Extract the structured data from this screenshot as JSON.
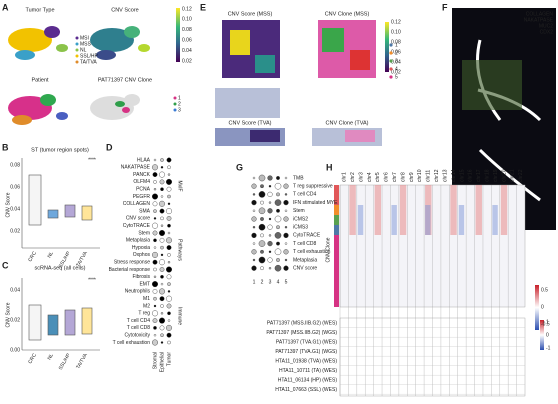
{
  "A": {
    "label": "A",
    "titles": [
      "Tumor Type",
      "CNV Score",
      "Patient",
      "PAT71397 CNV Clone"
    ],
    "legend": [
      "MSI",
      "MSS",
      "NL",
      "SSL/HP",
      "TA/TVA"
    ],
    "colorbar": [
      "0.12",
      "0.10",
      "0.08",
      "0.06",
      "0.04",
      "0.02"
    ],
    "clones": [
      "1",
      "2",
      "3"
    ]
  },
  "B": {
    "label": "B",
    "title": "ST (tumor region spots)",
    "ylabel": "CNV Score",
    "yticks": [
      "0.08",
      "0.06",
      "0.04",
      "0.02"
    ],
    "categories": [
      "CRC",
      "NL",
      "SSL/HP",
      "TA/TVA"
    ],
    "sig": "****"
  },
  "C": {
    "label": "C",
    "title": "scRNA-seq (all cells)",
    "ylabel": "CNV Score",
    "yticks": [
      "0.04",
      "0.02",
      "0.00"
    ],
    "categories": [
      "CRC",
      "NL",
      "SSL/HP",
      "TA/TVA"
    ],
    "sig": "****"
  },
  "D": {
    "label": "D",
    "rows": [
      "HLAA",
      "NAKATPASE",
      "PANCK",
      "OLFM4",
      "PCNA",
      "PEGFR",
      "COLLAGEN",
      "SMA",
      "CNV score",
      "CytoTRACE",
      "Stem",
      "Metaplasia",
      "Hypoxia",
      "Oxphos",
      "Stress response",
      "Bacterial response",
      "Fibrosis",
      "EMT",
      "Neutrophils",
      "M1",
      "M2",
      "T reg",
      "T cell CD4",
      "T cell CD8",
      "Cytotoxicity",
      "T cell exhaustion"
    ],
    "columns": [
      "Stromal",
      "Epithelial",
      "Tumor"
    ],
    "groups": [
      "MxIF",
      "Pathways",
      "Immune"
    ]
  },
  "E": {
    "label": "E",
    "titles": [
      "CNV Score (MSS)",
      "CNV Clone (MSS)",
      "CNV Score (TVA)",
      "CNV Clone (TVA)"
    ],
    "colorbar": [
      "0.12",
      "0.10",
      "0.08",
      "0.06",
      "0.04",
      "0.02"
    ],
    "clones": [
      "1",
      "2",
      "3",
      "4",
      "5"
    ]
  },
  "F": {
    "label": "F",
    "markers": [
      "COLLAGEN",
      "NAKATPASE",
      "MUC2",
      "CDX2"
    ]
  },
  "G": {
    "label": "G",
    "rows": [
      "TMB",
      "T reg suppressive",
      "T cell CD4",
      "IFN stimulated MYE",
      "Stem",
      "iCMS2",
      "iCMS3",
      "CytoTRACE",
      "T cell CD8",
      "T cell exhaustion",
      "Metaplasia",
      "CNV score"
    ],
    "columns": [
      "1",
      "2",
      "3",
      "4",
      "5"
    ]
  },
  "H": {
    "label": "H",
    "chromosomes": [
      "chr1",
      "chr2",
      "chr3",
      "chr4",
      "chr5",
      "chr6",
      "chr7",
      "chr8",
      "chr9",
      "chr10",
      "chr11",
      "chr12",
      "chr13",
      "chr14",
      "chr15",
      "chr16",
      "chr17",
      "chr18",
      "chr19",
      "chr20",
      "chr21",
      "chr22"
    ],
    "ylabel": "CNV Clone",
    "colorbar": [
      "0.5",
      "0",
      "-0.5"
    ],
    "colorbar2": [
      "1",
      "0",
      "-1"
    ],
    "samples": [
      "PAT71397 (MSS.IIB.G2) (WES)",
      "PAT71397 (MSS.IIB.G2) (WGS)",
      "PAT71397 (TVA.G1) (WES)",
      "PAT71397 (TVA.G1) (WGS)",
      "HTA11_01938 (TVA) (WES)",
      "HTA11_10711 (TA) (WES)",
      "HTA11_06134 (HP) (WES)",
      "HTA11_07663 (SSL) (WES)"
    ]
  }
}
